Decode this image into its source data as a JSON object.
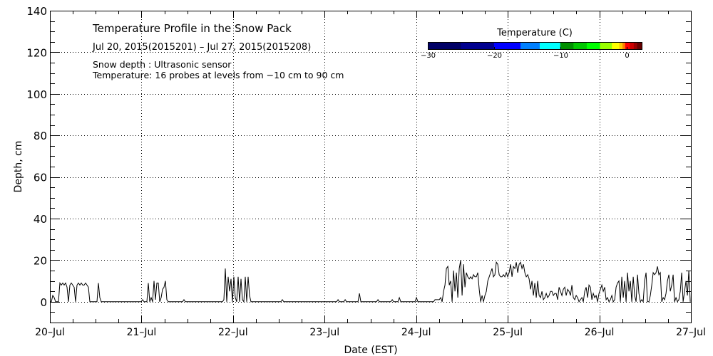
{
  "chart_data": {
    "type": "line",
    "title": "Temperature Profile in the Snow Pack",
    "subtitle": "Jul 20, 2015(2015201) – Jul 27, 2015(2015208)",
    "notes": [
      "Snow depth : Ultrasonic sensor",
      "Temperature: 16 probes at levels from −10 cm to 90 cm"
    ],
    "xlabel": "Date (EST)",
    "ylabel": "Depth, cm",
    "ylim": [
      -10,
      140
    ],
    "xlim_hours": [
      0,
      168
    ],
    "grid": true,
    "x_tick_labels": [
      "20–Jul",
      "21–Jul",
      "22–Jul",
      "23–Jul",
      "24–Jul",
      "25–Jul",
      "26–Jul",
      "27–Jul"
    ],
    "y_ticks": [
      0,
      20,
      40,
      60,
      80,
      100,
      120,
      140
    ],
    "colorbar": {
      "title": "Temperature (C)",
      "range": [
        -30,
        2.3
      ],
      "tick_values": [
        -30,
        -20,
        -10,
        0
      ],
      "tick_labels": [
        "−30",
        "−20",
        "−10",
        "0"
      ],
      "bands": [
        {
          "from": -30,
          "to": -25,
          "color": "#000066"
        },
        {
          "from": -25,
          "to": -20,
          "color": "#00008f"
        },
        {
          "from": -20,
          "to": -16,
          "color": "#0000ff"
        },
        {
          "from": -16,
          "to": -13.1,
          "color": "#0080ff"
        },
        {
          "from": -13.1,
          "to": -10,
          "color": "#00ffff"
        },
        {
          "from": -10,
          "to": -8,
          "color": "#009000"
        },
        {
          "from": -8,
          "to": -6,
          "color": "#00c800"
        },
        {
          "from": -6,
          "to": -4,
          "color": "#00ff00"
        },
        {
          "from": -4,
          "to": -2.2,
          "color": "#99ff00"
        },
        {
          "from": -2.2,
          "to": -1.1,
          "color": "#ffff00"
        },
        {
          "from": -1.1,
          "to": -0.6,
          "color": "#ffcc00"
        },
        {
          "from": -0.6,
          "to": -0.2,
          "color": "#ff8000"
        },
        {
          "from": -0.2,
          "to": 0.5,
          "color": "#ff0000"
        },
        {
          "from": 0.5,
          "to": 1.1,
          "color": "#cc0000"
        },
        {
          "from": 1.1,
          "to": 1.6,
          "color": "#990000"
        },
        {
          "from": 1.6,
          "to": 2.3,
          "color": "#660000"
        }
      ]
    },
    "series": [
      {
        "name": "Snow depth",
        "start": "2015-07-20 00:00",
        "interval_hours": 0.3738,
        "values": [
          0,
          0,
          3,
          2,
          0,
          0,
          0,
          9,
          8,
          9,
          8,
          9,
          7,
          0,
          8,
          9,
          8,
          7,
          0,
          8,
          9,
          8,
          9,
          8,
          8,
          9,
          8,
          7,
          0,
          0,
          0,
          0,
          0,
          0,
          9,
          2,
          0,
          0,
          0,
          0,
          0,
          0,
          0,
          0,
          0,
          0,
          0,
          0,
          0,
          0,
          0,
          0,
          0,
          0,
          0,
          0,
          0,
          0,
          0,
          0,
          0,
          0,
          0,
          0,
          0,
          1,
          0,
          0,
          0,
          9,
          0,
          2,
          0,
          10,
          1,
          9,
          9,
          0,
          2,
          6,
          7,
          10,
          1,
          0,
          0,
          0,
          0,
          0,
          0,
          0,
          0,
          0,
          0,
          0,
          1,
          0,
          0,
          0,
          0,
          0,
          0,
          0,
          0,
          0,
          0,
          0,
          0,
          0,
          0,
          0,
          0,
          0,
          0,
          0,
          0,
          0,
          0,
          0,
          0,
          0,
          0,
          0,
          1,
          16,
          0,
          12,
          5,
          11,
          0,
          12,
          2,
          0,
          12,
          0,
          11,
          1,
          0,
          12,
          0,
          12,
          3,
          0,
          0,
          0,
          0,
          0,
          0,
          0,
          0,
          0,
          0,
          0,
          0,
          0,
          0,
          0,
          0,
          0,
          0,
          0,
          0,
          0,
          0,
          1,
          0,
          0,
          0,
          0,
          0,
          0,
          0,
          0,
          0,
          0,
          0,
          0,
          0,
          0,
          0,
          0,
          0,
          0,
          0,
          0,
          0,
          0,
          0,
          0,
          0,
          0,
          0,
          0,
          0,
          0,
          0,
          0,
          0,
          0,
          0,
          0,
          0,
          0,
          1,
          0,
          0,
          0,
          0,
          1,
          0,
          0,
          0,
          0,
          0,
          0,
          0,
          0,
          0,
          4,
          0,
          0,
          0,
          0,
          0,
          0,
          0,
          0,
          0,
          0,
          0,
          0,
          1,
          0,
          0,
          0,
          0,
          0,
          0,
          0,
          0,
          0,
          1,
          0,
          0,
          0,
          0,
          2,
          0,
          0,
          0,
          0,
          0,
          0,
          0,
          0,
          0,
          0,
          0,
          2,
          0,
          0,
          0,
          0,
          0,
          0,
          0,
          0,
          0,
          0,
          0,
          0,
          1,
          1,
          1,
          1,
          2,
          0,
          5,
          8,
          16,
          17,
          8,
          10,
          0,
          15,
          5,
          14,
          2,
          16,
          20,
          3,
          18,
          7,
          14,
          12,
          11,
          12,
          11,
          13,
          12,
          12,
          14,
          6,
          0,
          3,
          0,
          3,
          5,
          10,
          12,
          14,
          16,
          12,
          13,
          19,
          18,
          13,
          12,
          12,
          13,
          12,
          14,
          12,
          14,
          18,
          12,
          17,
          16,
          19,
          14,
          18,
          19,
          16,
          18,
          14,
          12,
          13,
          11,
          6,
          10,
          3,
          9,
          2,
          10,
          3,
          2,
          5,
          1,
          2,
          4,
          2,
          3,
          5,
          5,
          3,
          4,
          4,
          1,
          7,
          5,
          3,
          6,
          7,
          3,
          6,
          5,
          3,
          8,
          2,
          1,
          3,
          2,
          0,
          1,
          2,
          0,
          5,
          7,
          2,
          8,
          7,
          1,
          4,
          2,
          3,
          0,
          4,
          6,
          8,
          5,
          7,
          1,
          2,
          0,
          1,
          3,
          0,
          1,
          7,
          9,
          10,
          0,
          12,
          2,
          10,
          0,
          14,
          5,
          10,
          0,
          12,
          3,
          0,
          13,
          4,
          0,
          1,
          0,
          10,
          14,
          0,
          0,
          3,
          8,
          14,
          13,
          14,
          17,
          13,
          14,
          0,
          2,
          1,
          4,
          10,
          13,
          5,
          8,
          13,
          0,
          2,
          0,
          1,
          5,
          14,
          0,
          5,
          10,
          3,
          15,
          0
        ]
      }
    ]
  }
}
